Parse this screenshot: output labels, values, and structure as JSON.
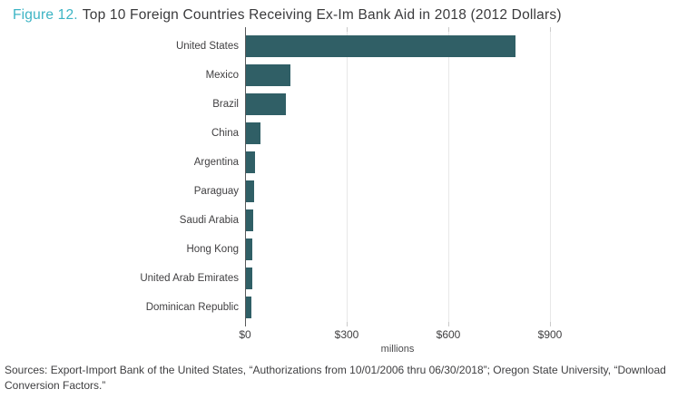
{
  "title": {
    "figure_label": "Figure 12.",
    "text": "Top 10 Foreign Countries Receiving Ex-Im Bank Aid in 2018 (2012 Dollars)"
  },
  "chart_data": {
    "type": "bar",
    "orientation": "horizontal",
    "title": "Top 10 Foreign Countries Receiving Ex-Im Bank Aid in 2018 (2012 Dollars)",
    "categories": [
      "United States",
      "Mexico",
      "Brazil",
      "China",
      "Argentina",
      "Paraguay",
      "Saudi Arabia",
      "Hong Kong",
      "United Arab Emirates",
      "Dominican Republic"
    ],
    "values": [
      795,
      130,
      118,
      42,
      26,
      24,
      22,
      20,
      18,
      15
    ],
    "xlabel": "millions",
    "xlim": [
      0,
      1000
    ],
    "xticks": [
      0,
      300,
      600,
      900
    ],
    "xtick_labels": [
      "$0",
      "$300",
      "$600",
      "$900"
    ],
    "grid": true,
    "legend": false,
    "bar_color": "#305f66"
  },
  "colors": {
    "accent": "#3cb4c4",
    "bar": "#305f66",
    "text": "#3a3a3c",
    "grid": "#e8e8e8",
    "axis": "#58595b"
  },
  "sources": {
    "line1": "Sources: Export-Import Bank of the United States, “Authorizations from 10/01/2006 thru 06/30/2018”; Oregon State University, “Download",
    "line2": "Conversion Factors.”"
  }
}
